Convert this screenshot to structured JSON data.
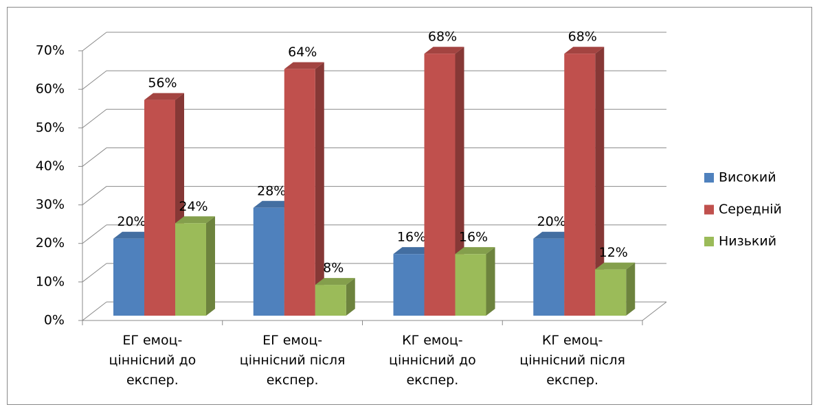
{
  "chart_data": {
    "type": "bar3d",
    "categories": [
      "ЕГ емоц-ціннісний до експер.",
      "ЕГ емоц-ціннісний після експер.",
      "КГ емоц-ціннісний до експер.",
      "КГ емоц-ціннісний після експер."
    ],
    "series": [
      {
        "name": "Високий",
        "color": "#4f81bd",
        "values": [
          20,
          28,
          16,
          20
        ],
        "value_labels": [
          "20%",
          "28%",
          "16%",
          "20%"
        ]
      },
      {
        "name": "Середній",
        "color": "#c0504d",
        "values": [
          56,
          64,
          68,
          68
        ],
        "value_labels": [
          "56%",
          "64%",
          "68%",
          "68%"
        ]
      },
      {
        "name": "Низький",
        "color": "#9bbb59",
        "values": [
          24,
          8,
          16,
          12
        ],
        "value_labels": [
          "24%",
          "8%",
          "16%",
          "12%"
        ]
      }
    ],
    "ylim": [
      0,
      70
    ],
    "yticks": [
      {
        "value": 0,
        "label": "0%"
      },
      {
        "value": 10,
        "label": "10%"
      },
      {
        "value": 20,
        "label": "20%"
      },
      {
        "value": 30,
        "label": "30%"
      },
      {
        "value": 40,
        "label": "40%"
      },
      {
        "value": 50,
        "label": "50%"
      },
      {
        "value": 60,
        "label": "60%"
      },
      {
        "value": 70,
        "label": "70%"
      }
    ],
    "grid": true,
    "legend": "right"
  }
}
